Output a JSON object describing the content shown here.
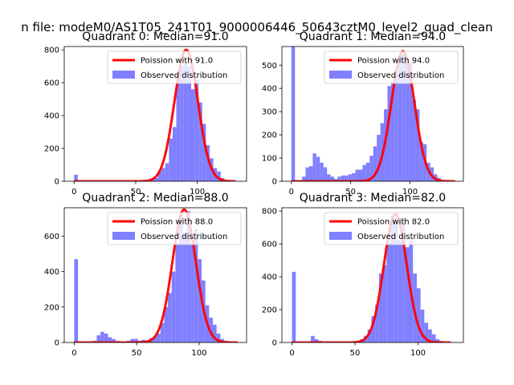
{
  "suptitle": "n file: modeM0/AS1T05_241T01_9000006446_50643cztM0_level2_quad_clean",
  "colors": {
    "bar": "#8080ff",
    "line": "#ff0000",
    "axis": "#000000"
  },
  "chart_data": [
    {
      "type": "bar",
      "title": "Quadrant 0: Median=91.0",
      "xlim": [
        -8,
        140
      ],
      "ylim": [
        0,
        820
      ],
      "xticks": [
        0,
        50,
        100
      ],
      "yticks": [
        0,
        200,
        400,
        600,
        800
      ],
      "legend": {
        "position": "top-right",
        "line_label": "Poission with 91.0",
        "bar_label": "Observed distribution"
      },
      "bin_width": 3,
      "bars": [
        [
          0,
          40
        ],
        [
          59,
          5
        ],
        [
          62,
          12
        ],
        [
          65,
          20
        ],
        [
          68,
          60
        ],
        [
          71,
          80
        ],
        [
          74,
          110
        ],
        [
          77,
          260
        ],
        [
          80,
          330
        ],
        [
          83,
          650
        ],
        [
          86,
          700
        ],
        [
          89,
          720
        ],
        [
          92,
          700
        ],
        [
          95,
          560
        ],
        [
          98,
          620
        ],
        [
          101,
          480
        ],
        [
          104,
          350
        ],
        [
          107,
          220
        ],
        [
          110,
          140
        ],
        [
          113,
          80
        ],
        [
          116,
          60
        ],
        [
          119,
          20
        ],
        [
          122,
          8
        ]
      ],
      "curve_mean": 91,
      "curve_peak": 800,
      "curve_range": [
        0,
        131
      ]
    },
    {
      "type": "bar",
      "title": "Quadrant 1: Median=94.0",
      "xlim": [
        -8,
        145
      ],
      "ylim": [
        0,
        580
      ],
      "xticks": [
        0,
        50,
        100
      ],
      "yticks": [
        0,
        100,
        200,
        300,
        400,
        500
      ],
      "legend": {
        "position": "top-right",
        "line_label": "Poission with 94.0",
        "bar_label": "Observed distribution"
      },
      "bin_width": 3,
      "bars": [
        [
          0,
          580
        ],
        [
          9,
          20
        ],
        [
          12,
          60
        ],
        [
          15,
          65
        ],
        [
          18,
          120
        ],
        [
          21,
          105
        ],
        [
          24,
          80
        ],
        [
          27,
          60
        ],
        [
          30,
          30
        ],
        [
          33,
          20
        ],
        [
          36,
          10
        ],
        [
          39,
          20
        ],
        [
          42,
          25
        ],
        [
          45,
          25
        ],
        [
          48,
          30
        ],
        [
          51,
          35
        ],
        [
          54,
          50
        ],
        [
          57,
          50
        ],
        [
          60,
          70
        ],
        [
          63,
          80
        ],
        [
          66,
          110
        ],
        [
          69,
          150
        ],
        [
          72,
          200
        ],
        [
          75,
          250
        ],
        [
          78,
          310
        ],
        [
          81,
          410
        ],
        [
          84,
          430
        ],
        [
          87,
          460
        ],
        [
          90,
          540
        ],
        [
          93,
          550
        ],
        [
          96,
          530
        ],
        [
          99,
          510
        ],
        [
          102,
          350
        ],
        [
          105,
          310
        ],
        [
          108,
          170
        ],
        [
          111,
          160
        ],
        [
          114,
          80
        ],
        [
          117,
          60
        ],
        [
          120,
          30
        ],
        [
          123,
          15
        ],
        [
          126,
          5
        ]
      ],
      "curve_mean": 94,
      "curve_peak": 560,
      "curve_range": [
        0,
        138
      ]
    },
    {
      "type": "bar",
      "title": "Quadrant 2: Median=88.0",
      "xlim": [
        -8,
        138
      ],
      "ylim": [
        0,
        760
      ],
      "xticks": [
        0,
        50,
        100
      ],
      "yticks": [
        0,
        200,
        400,
        600
      ],
      "legend": {
        "position": "top-right",
        "line_label": "Poission with 88.0",
        "bar_label": "Observed distribution"
      },
      "bin_width": 3,
      "bars": [
        [
          0,
          470
        ],
        [
          15,
          10
        ],
        [
          18,
          40
        ],
        [
          21,
          60
        ],
        [
          24,
          50
        ],
        [
          27,
          30
        ],
        [
          30,
          20
        ],
        [
          33,
          10
        ],
        [
          36,
          5
        ],
        [
          42,
          10
        ],
        [
          45,
          20
        ],
        [
          48,
          20
        ],
        [
          51,
          10
        ],
        [
          54,
          15
        ],
        [
          57,
          10
        ],
        [
          60,
          25
        ],
        [
          63,
          35
        ],
        [
          66,
          50
        ],
        [
          69,
          110
        ],
        [
          72,
          200
        ],
        [
          75,
          280
        ],
        [
          78,
          400
        ],
        [
          81,
          560
        ],
        [
          84,
          720
        ],
        [
          87,
          620
        ],
        [
          90,
          740
        ],
        [
          93,
          560
        ],
        [
          96,
          640
        ],
        [
          99,
          470
        ],
        [
          102,
          350
        ],
        [
          105,
          210
        ],
        [
          108,
          140
        ],
        [
          111,
          100
        ],
        [
          114,
          50
        ],
        [
          117,
          20
        ],
        [
          120,
          10
        ]
      ],
      "curve_mean": 88,
      "curve_peak": 750,
      "curve_range": [
        0,
        131
      ]
    },
    {
      "type": "bar",
      "title": "Quadrant 3: Median=82.0",
      "xlim": [
        -8,
        136
      ],
      "ylim": [
        0,
        820
      ],
      "xticks": [
        0,
        50,
        100
      ],
      "yticks": [
        0,
        200,
        400,
        600,
        800
      ],
      "legend": {
        "position": "top-right",
        "line_label": "Poission with 82.0",
        "bar_label": "Observed distribution"
      },
      "bin_width": 3,
      "bars": [
        [
          0,
          430
        ],
        [
          15,
          40
        ],
        [
          18,
          20
        ],
        [
          21,
          10
        ],
        [
          27,
          5
        ],
        [
          33,
          5
        ],
        [
          42,
          5
        ],
        [
          48,
          5
        ],
        [
          51,
          10
        ],
        [
          54,
          20
        ],
        [
          57,
          40
        ],
        [
          60,
          80
        ],
        [
          63,
          160
        ],
        [
          66,
          230
        ],
        [
          69,
          420
        ],
        [
          72,
          470
        ],
        [
          75,
          610
        ],
        [
          78,
          770
        ],
        [
          81,
          760
        ],
        [
          84,
          620
        ],
        [
          87,
          760
        ],
        [
          90,
          580
        ],
        [
          93,
          620
        ],
        [
          96,
          420
        ],
        [
          99,
          330
        ],
        [
          102,
          200
        ],
        [
          105,
          120
        ],
        [
          108,
          80
        ],
        [
          111,
          50
        ],
        [
          114,
          20
        ],
        [
          117,
          10
        ]
      ],
      "curve_mean": 82,
      "curve_peak": 780,
      "curve_range": [
        0,
        126
      ]
    }
  ]
}
